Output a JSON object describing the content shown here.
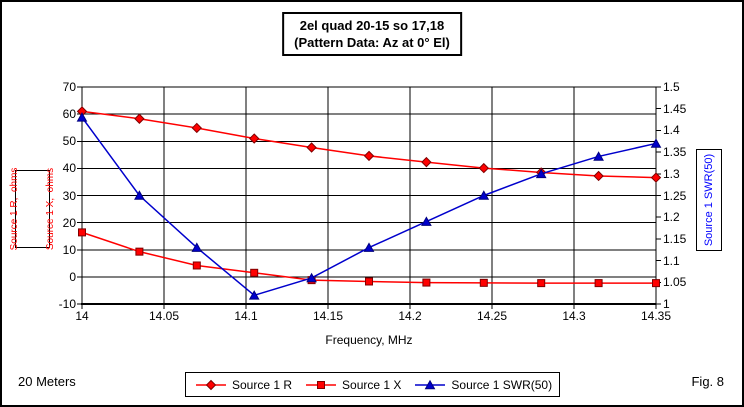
{
  "footer": {
    "band": "20 Meters",
    "figure": "Fig. 8"
  },
  "chart_data": {
    "type": "line",
    "title": "2el quad 20-15 so 17,18",
    "subtitle": "(Pattern Data: Az at 0° El)",
    "xlabel": "Frequency, MHz",
    "ylabel_left_line1": "Source 1 R,  ohms",
    "ylabel_left_line2": "Source 1 X,  ohms",
    "ylabel_right": "Source 1 SWR(50)",
    "grid": true,
    "legend_position": "bottom",
    "x": [
      14.0,
      14.035,
      14.07,
      14.105,
      14.14,
      14.175,
      14.21,
      14.245,
      14.28,
      14.315,
      14.35
    ],
    "x_axis": {
      "min": 14.0,
      "max": 14.35,
      "tick_step": 0.05,
      "tick_labels": [
        "14",
        "14.05",
        "14.1",
        "14.15",
        "14.2",
        "14.25",
        "14.3",
        "14.35"
      ]
    },
    "left_axis": {
      "min": -10,
      "max": 70,
      "step": 10
    },
    "right_axis": {
      "min": 1.0,
      "max": 1.5,
      "step": 0.05
    },
    "series": [
      {
        "name": "Source 1 R",
        "axis": "left",
        "marker": "diamond",
        "color": "#FF0000",
        "edge": "#7F0000",
        "values": [
          61.0,
          58.3,
          54.9,
          51.0,
          47.7,
          44.6,
          42.3,
          40.1,
          38.5,
          37.2,
          36.6
        ]
      },
      {
        "name": "Source 1 X",
        "axis": "left",
        "marker": "square",
        "color": "#FF0000",
        "edge": "#7F0000",
        "values": [
          16.4,
          9.3,
          4.2,
          1.5,
          -1.2,
          -1.7,
          -2.1,
          -2.2,
          -2.3,
          -2.3,
          -2.3
        ]
      },
      {
        "name": "Source 1 SWR(50)",
        "axis": "right",
        "marker": "triangle",
        "color": "#0000CC",
        "edge": "#00007F",
        "values": [
          1.43,
          1.25,
          1.13,
          1.02,
          1.06,
          1.13,
          1.19,
          1.25,
          1.3,
          1.34,
          1.37
        ]
      }
    ]
  }
}
